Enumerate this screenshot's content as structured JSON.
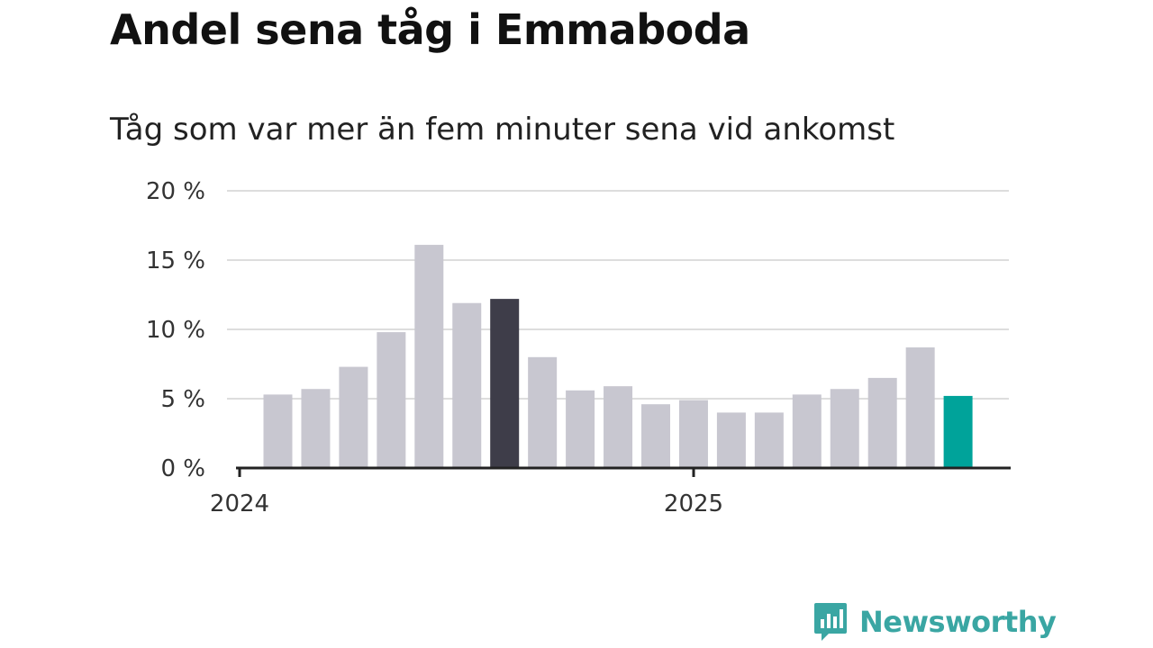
{
  "title": "Andel sena tåg i Emmaboda",
  "subtitle": "Tåg som var mer än fem minuter sena vid ankomst",
  "brand": {
    "name": "Newsworthy",
    "color": "#3aa6a3",
    "icon": "newsworthy-logo-icon"
  },
  "colors": {
    "bar": "#c8c7d0",
    "highlight_dark": "#3e3d49",
    "highlight_latest": "#00a39a",
    "grid": "#dddddd",
    "axis": "#222222"
  },
  "chart_data": {
    "type": "bar",
    "title": "Andel sena tåg i Emmaboda",
    "subtitle": "Tåg som var mer än fem minuter sena vid ankomst",
    "x": [
      "2024-01",
      "2024-02",
      "2024-03",
      "2024-04",
      "2024-05",
      "2024-06",
      "2024-07",
      "2024-08",
      "2024-09",
      "2024-10",
      "2024-11",
      "2024-12",
      "2025-01",
      "2025-02",
      "2025-03",
      "2025-04",
      "2025-05",
      "2025-06",
      "2025-07"
    ],
    "values": [
      5.3,
      5.7,
      7.3,
      9.8,
      16.1,
      11.9,
      12.2,
      8.0,
      5.6,
      5.9,
      4.6,
      4.9,
      4.0,
      4.0,
      5.3,
      5.7,
      6.5,
      8.7,
      5.2
    ],
    "highlight": {
      "2024-07": "highlight_dark",
      "2025-07": "highlight_latest"
    },
    "ylim": [
      0,
      20
    ],
    "yticks": [
      0,
      5,
      10,
      15,
      20
    ],
    "ytick_labels": [
      "0 %",
      "5 %",
      "10 %",
      "15 %",
      "20 %"
    ],
    "xtick_labels": [
      "2024",
      "2025"
    ],
    "grid": true,
    "legend": "none"
  }
}
